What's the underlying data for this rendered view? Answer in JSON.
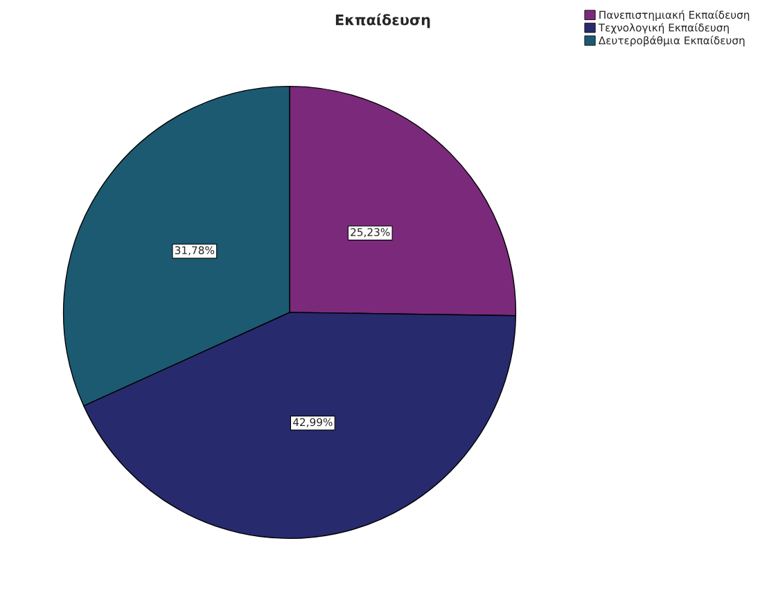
{
  "chart_data": {
    "type": "pie",
    "title": "Εκπαίδευση",
    "categories": [
      "Πανεπιστημιακή Εκπαίδευση",
      "Τεχνολογική Εκπαίδευση",
      "Δευτεροβάθμια Εκπαίδευση"
    ],
    "values": [
      25.23,
      42.99,
      31.78
    ],
    "colors": [
      "#7b2a7b",
      "#282a6e",
      "#1c5a72"
    ],
    "value_labels": [
      "25,23%",
      "42,99%",
      "31,78%"
    ],
    "legend": "top right"
  }
}
